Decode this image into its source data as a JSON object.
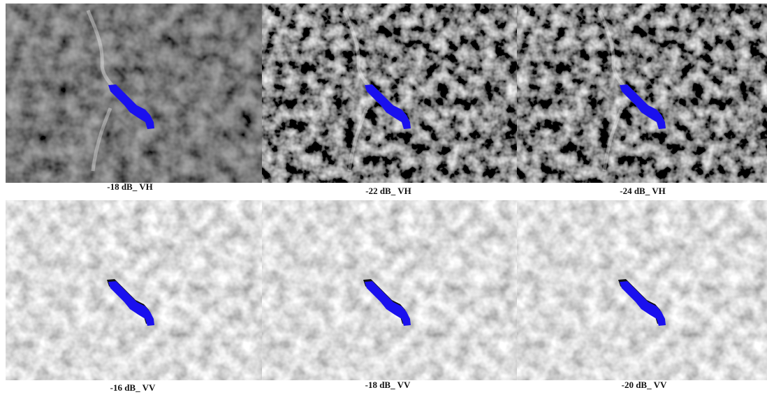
{
  "panels": [
    {
      "label": "-18 dB_ VH"
    },
    {
      "label": "-22 dB_ VH"
    },
    {
      "label": "-24 dB_ VH"
    },
    {
      "label": "-16 dB_ VV"
    },
    {
      "label": "-18 dB_ VV"
    },
    {
      "label": "-20 dB_ VV"
    }
  ]
}
